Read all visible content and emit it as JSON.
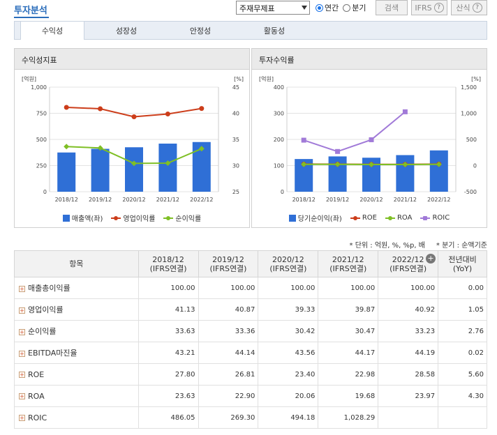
{
  "header": {
    "title": "투자분석",
    "select_value": "주재무제표",
    "period_options": [
      "연간",
      "분기"
    ],
    "period_selected": "연간",
    "search_label": "검색",
    "ifrs_label": "IFRS",
    "formula_label": "산식",
    "help_glyph": "?"
  },
  "tabs": [
    "수익성",
    "성장성",
    "안정성",
    "활동성"
  ],
  "active_tab": "수익성",
  "chart_left_title": "수익성지표",
  "chart_right_title": "투자수익률",
  "chart_data": [
    {
      "type": "bar",
      "title": "수익성지표",
      "categories": [
        "2018/12",
        "2019/12",
        "2020/12",
        "2021/12",
        "2022/12"
      ],
      "left_axis_unit": "[억원]",
      "right_axis_unit": "[%]",
      "left_ylim": [
        0,
        1000
      ],
      "left_ticks": [
        "1,000",
        "750",
        "500",
        "250",
        "0"
      ],
      "right_ylim": [
        25,
        45
      ],
      "right_ticks": [
        "45",
        "40",
        "35",
        "30",
        "25"
      ],
      "grid": true,
      "legend_position": "bottom",
      "series": [
        {
          "name": "매출액(좌)",
          "type": "bar",
          "axis": "left",
          "color": "#2f6fd6",
          "values": [
            375,
            410,
            425,
            460,
            475
          ]
        },
        {
          "name": "영업이익률",
          "type": "line",
          "axis": "right",
          "color": "#cc3d1a",
          "values": [
            41.13,
            40.87,
            39.33,
            39.87,
            40.92
          ]
        },
        {
          "name": "순이익률",
          "type": "line",
          "axis": "right",
          "color": "#7fbf25",
          "values": [
            33.63,
            33.36,
            30.42,
            30.47,
            33.23
          ]
        }
      ]
    },
    {
      "type": "bar",
      "title": "투자수익률",
      "categories": [
        "2018/12",
        "2019/12",
        "2020/12",
        "2021/12",
        "2022/12"
      ],
      "left_axis_unit": "[억원]",
      "right_axis_unit": "[%]",
      "left_ylim": [
        0,
        400
      ],
      "left_ticks": [
        "400",
        "300",
        "200",
        "100",
        "0"
      ],
      "right_ylim": [
        -500,
        1500
      ],
      "right_ticks": [
        "1,500",
        "1,000",
        "500",
        "0",
        "-500"
      ],
      "grid": true,
      "legend_position": "bottom",
      "series": [
        {
          "name": "당기순이익(좌)",
          "type": "bar",
          "axis": "left",
          "color": "#2f6fd6",
          "values": [
            125,
            135,
            130,
            140,
            158
          ]
        },
        {
          "name": "ROE",
          "type": "line",
          "axis": "right",
          "color": "#cc3d1a",
          "values": [
            27.8,
            26.81,
            23.4,
            22.98,
            28.58
          ]
        },
        {
          "name": "ROA",
          "type": "line",
          "axis": "right",
          "color": "#7fbf25",
          "values": [
            23.63,
            22.9,
            20.06,
            19.68,
            23.97
          ]
        },
        {
          "name": "ROIC",
          "type": "line",
          "axis": "right",
          "color": "#a17ad8",
          "values": [
            486.05,
            269.3,
            494.18,
            1028.29,
            null
          ]
        }
      ]
    }
  ],
  "notes": {
    "unit": "* 단위 : 억원, %, %p, 배",
    "basis": "* 분기 : 순액기준"
  },
  "table": {
    "headers": [
      {
        "line1": "항목",
        "line2": ""
      },
      {
        "line1": "2018/12",
        "line2": "(IFRS연결)"
      },
      {
        "line1": "2019/12",
        "line2": "(IFRS연결)"
      },
      {
        "line1": "2020/12",
        "line2": "(IFRS연결)"
      },
      {
        "line1": "2021/12",
        "line2": "(IFRS연결)"
      },
      {
        "line1": "2022/12",
        "line2": "(IFRS연결)"
      },
      {
        "line1": "전년대비",
        "line2": "(YoY)"
      }
    ],
    "plus_glyph": "+",
    "rows": [
      {
        "label": "매출총이익률",
        "values": [
          "100.00",
          "100.00",
          "100.00",
          "100.00",
          "100.00",
          "0.00"
        ]
      },
      {
        "label": "영업이익률",
        "values": [
          "41.13",
          "40.87",
          "39.33",
          "39.87",
          "40.92",
          "1.05"
        ]
      },
      {
        "label": "순이익률",
        "values": [
          "33.63",
          "33.36",
          "30.42",
          "30.47",
          "33.23",
          "2.76"
        ]
      },
      {
        "label": "EBITDA마진율",
        "values": [
          "43.21",
          "44.14",
          "43.56",
          "44.17",
          "44.19",
          "0.02"
        ]
      },
      {
        "label": "ROE",
        "values": [
          "27.80",
          "26.81",
          "23.40",
          "22.98",
          "28.58",
          "5.60"
        ]
      },
      {
        "label": "ROA",
        "values": [
          "23.63",
          "22.90",
          "20.06",
          "19.68",
          "23.97",
          "4.30"
        ]
      },
      {
        "label": "ROIC",
        "values": [
          "486.05",
          "269.30",
          "494.18",
          "1,028.29",
          "",
          ""
        ]
      }
    ]
  }
}
